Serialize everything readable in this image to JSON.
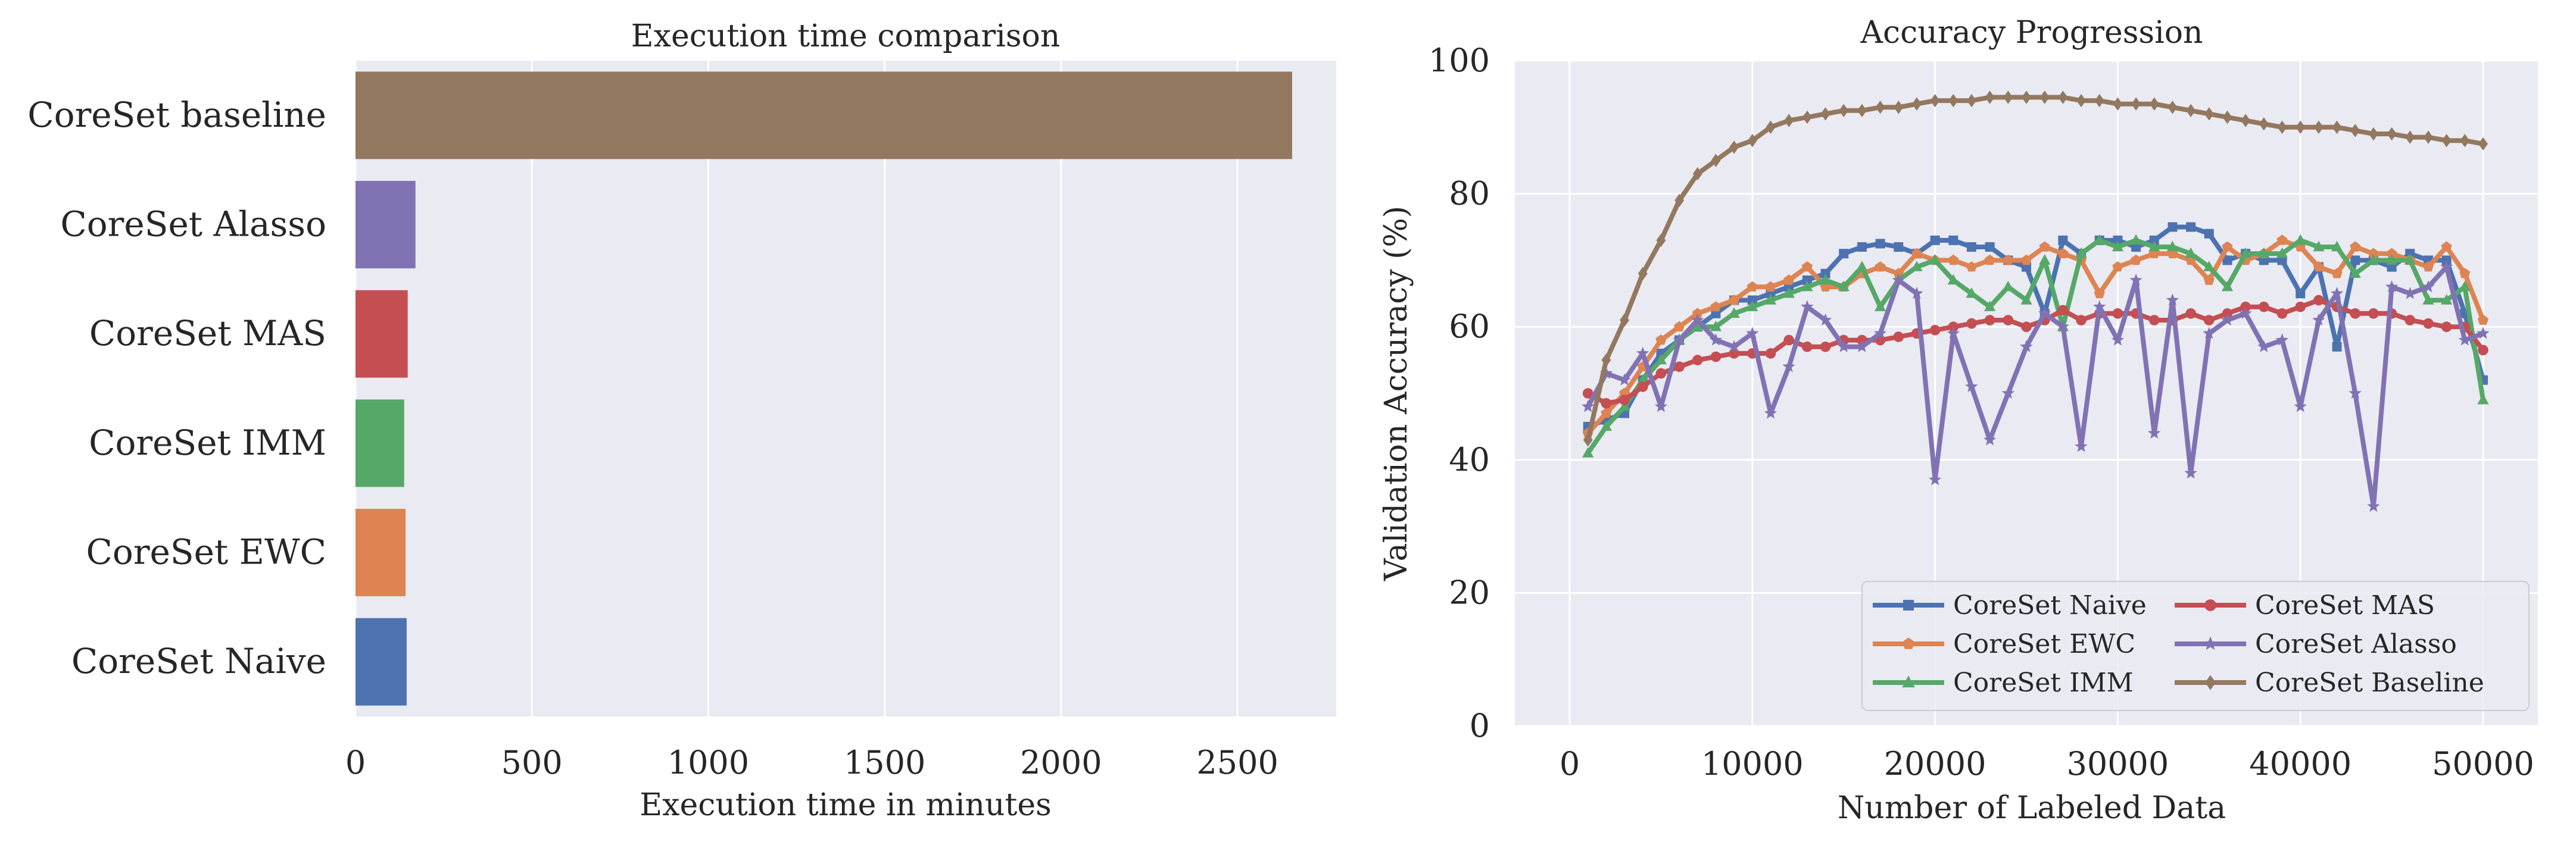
{
  "chart_data": [
    {
      "type": "bar",
      "orientation": "horizontal",
      "title": "Execution time comparison",
      "xlabel": "Execution time in minutes",
      "ylabel": "",
      "xlim": [
        0,
        2780
      ],
      "xticks": [
        0,
        500,
        1000,
        1500,
        2000,
        2500
      ],
      "grid": true,
      "categories": [
        "CoreSet baseline",
        "CoreSet Alasso",
        "CoreSet MAS",
        "CoreSet IMM",
        "CoreSet EWC",
        "CoreSet Naive"
      ],
      "values": [
        2655,
        170,
        148,
        138,
        142,
        145
      ],
      "colors": [
        "#937860",
        "#8172b3",
        "#c44e52",
        "#55a868",
        "#dd8452",
        "#4c72b0"
      ]
    },
    {
      "type": "line",
      "title": "Accuracy Progression",
      "xlabel": "Number of Labeled Data",
      "ylabel": "Validation Accuracy (%)",
      "xlim": [
        -3000,
        53000
      ],
      "ylim": [
        0,
        100
      ],
      "xticks": [
        0,
        10000,
        20000,
        30000,
        40000,
        50000
      ],
      "yticks": [
        0,
        20,
        40,
        60,
        80,
        100
      ],
      "grid": true,
      "legend": {
        "placement": "lower-right",
        "columns": 2
      },
      "x": [
        1000,
        2000,
        3000,
        4000,
        5000,
        6000,
        7000,
        8000,
        9000,
        10000,
        11000,
        12000,
        13000,
        14000,
        15000,
        16000,
        17000,
        18000,
        19000,
        20000,
        21000,
        22000,
        23000,
        24000,
        25000,
        26000,
        27000,
        28000,
        29000,
        30000,
        31000,
        32000,
        33000,
        34000,
        35000,
        36000,
        37000,
        38000,
        39000,
        40000,
        41000,
        42000,
        43000,
        44000,
        45000,
        46000,
        47000,
        48000,
        49000,
        50000
      ],
      "series": [
        {
          "name": "CoreSet Naive",
          "color": "#4c72b0",
          "marker": "square",
          "values": [
            45,
            46,
            47,
            52,
            56,
            58,
            60,
            62,
            64,
            64,
            65,
            66,
            67,
            68,
            71,
            72,
            72.5,
            72,
            71,
            73,
            73,
            72,
            72,
            70,
            69,
            62,
            73,
            71,
            73,
            73,
            72,
            73,
            75,
            75,
            74,
            70,
            71,
            70,
            70,
            65,
            69,
            57,
            70,
            70,
            69,
            71,
            70,
            70,
            62,
            52
          ]
        },
        {
          "name": "CoreSet EWC",
          "color": "#dd8452",
          "marker": "pentagon",
          "values": [
            44,
            47,
            50,
            54,
            58,
            60,
            62,
            63,
            64,
            66,
            66,
            67,
            69,
            66,
            66,
            68,
            69,
            68,
            71,
            70,
            70,
            69,
            70,
            70,
            70,
            72,
            71,
            70,
            65,
            69,
            70,
            71,
            71,
            70,
            67,
            72,
            70,
            71,
            73,
            72,
            69,
            68,
            72,
            71,
            71,
            70,
            69,
            72,
            68,
            61
          ]
        },
        {
          "name": "CoreSet IMM",
          "color": "#55a868",
          "marker": "triangle",
          "values": [
            41,
            45,
            48,
            52,
            55,
            58,
            60,
            60,
            62,
            63,
            64,
            65,
            66,
            67,
            66,
            69,
            63,
            67,
            69,
            70,
            67,
            65,
            63,
            66,
            64,
            70,
            60,
            71,
            73,
            72,
            73,
            72,
            72,
            71,
            69,
            66,
            71,
            71,
            71,
            73,
            72,
            72,
            68,
            70,
            70,
            70,
            64,
            64,
            66,
            49
          ]
        },
        {
          "name": "CoreSet MAS",
          "color": "#c44e52",
          "marker": "circle",
          "values": [
            50,
            48.5,
            49,
            51,
            53,
            54,
            55,
            55.5,
            56,
            56,
            56,
            58,
            57,
            57,
            58,
            58,
            58,
            58.5,
            59,
            59.5,
            60,
            60.5,
            61,
            61,
            60,
            61,
            62.5,
            61,
            62,
            62,
            62,
            61,
            61,
            62,
            61,
            62,
            63,
            63,
            62,
            63,
            64,
            63,
            62,
            62,
            62,
            61,
            60.5,
            60,
            60,
            56.5
          ]
        },
        {
          "name": "CoreSet Alasso",
          "color": "#8172b3",
          "marker": "star",
          "values": [
            48,
            53,
            52,
            56,
            48,
            58,
            61,
            58,
            57,
            59,
            47,
            54,
            63,
            61,
            57,
            57,
            59,
            67,
            65,
            37,
            59,
            51,
            43,
            50,
            57,
            62,
            60,
            42,
            63,
            58,
            67,
            44,
            64,
            38,
            59,
            61,
            62,
            57,
            58,
            48,
            61,
            65,
            50,
            33,
            66,
            65,
            66,
            69,
            58,
            59
          ]
        },
        {
          "name": "CoreSet Baseline",
          "color": "#937860",
          "marker": "diamond",
          "values": [
            43,
            55,
            61,
            68,
            73,
            79,
            83,
            85,
            87,
            88,
            90,
            91,
            91.5,
            92,
            92.5,
            92.5,
            93,
            93,
            93.5,
            94,
            94,
            94,
            94.5,
            94.5,
            94.5,
            94.5,
            94.5,
            94,
            94,
            93.5,
            93.5,
            93.5,
            93,
            92.5,
            92,
            91.5,
            91,
            90.5,
            90,
            90,
            90,
            90,
            89.5,
            89,
            89,
            88.5,
            88.5,
            88,
            88,
            87.5
          ]
        }
      ]
    }
  ]
}
